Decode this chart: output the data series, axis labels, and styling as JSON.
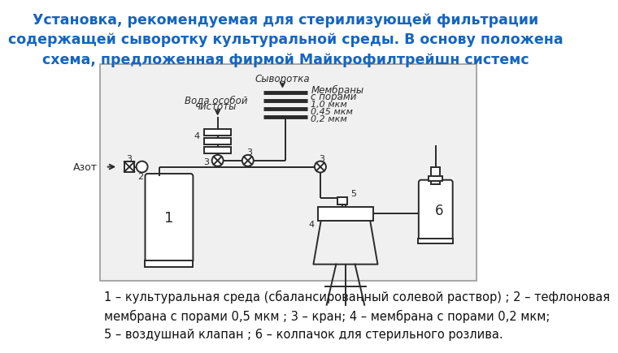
{
  "title_color": "#1565C0",
  "title_fontsize": 12.5,
  "title_text": "Установка, рекомендуемая для стерилизующей фильтрации\nсодержащей сыворотку культуральной среды. В основу положена\nсхема, предложенная фирмой Майкрофилтрейшн системс",
  "caption_text": "1 – культуральная среда (сбалансированный солевой раствор) ; 2 – тефлоновая\nмембрана с порами 0,5 мкм ; 3 – кран; 4 – мембрана с порами 0,2 мкм;\n5 – воздушнай клапан ; 6 – колпачок для стерильного розлива.",
  "caption_fontsize": 10.5,
  "caption_color": "#111111",
  "bg_color": "#ffffff",
  "diagram_bg": "#f0f0f0",
  "dark": "#2a2a2a",
  "box_edge": "#999999"
}
